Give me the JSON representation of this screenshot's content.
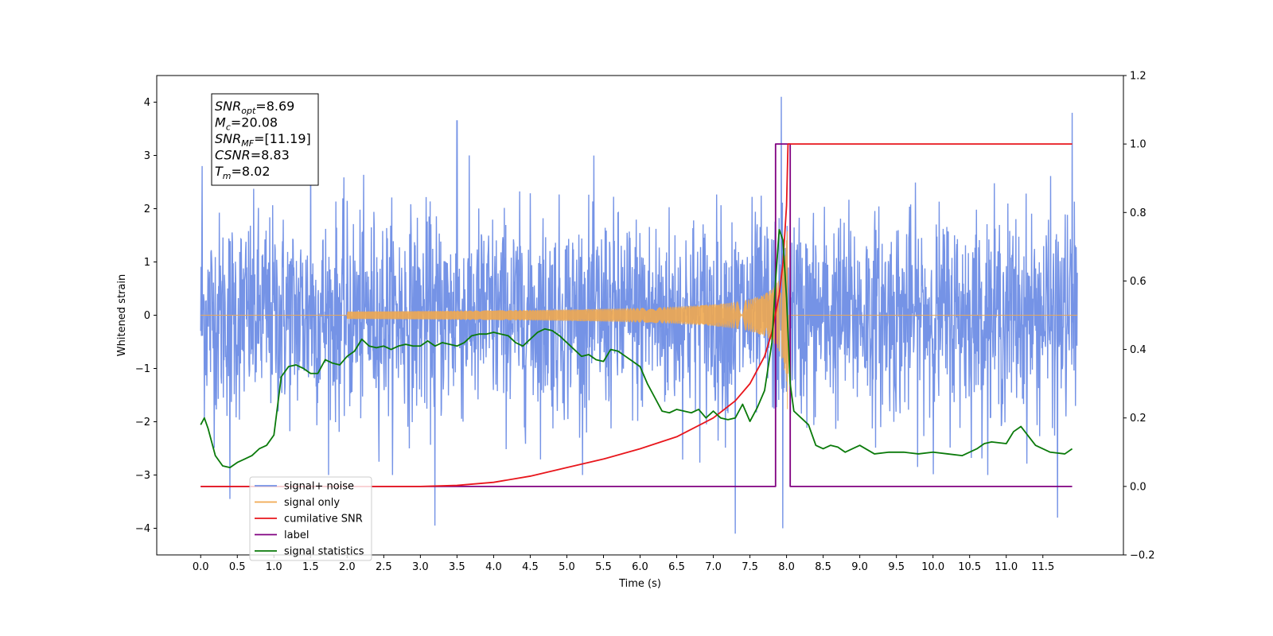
{
  "chart_data": {
    "type": "line",
    "title": "",
    "xlabel": "Time (s)",
    "ylabel": "Whitened strain",
    "xlim": [
      -0.6,
      12.6
    ],
    "ylim": [
      -4.5,
      4.5
    ],
    "y2lim": [
      -0.2,
      1.2
    ],
    "x_ticks": [
      "0.0",
      "0.5",
      "1.0",
      "1.5",
      "2.0",
      "2.5",
      "3.0",
      "3.5",
      "4.0",
      "4.5",
      "5.0",
      "5.5",
      "6.0",
      "6.5",
      "7.0",
      "7.5",
      "8.0",
      "8.5",
      "9.0",
      "9.5",
      "10.0",
      "10.5",
      "11.0",
      "11.5"
    ],
    "y_ticks": [
      "−4",
      "−3",
      "−2",
      "−1",
      "0",
      "1",
      "2",
      "3",
      "4"
    ],
    "y2_ticks": [
      "−0.2",
      "0.0",
      "0.2",
      "0.4",
      "0.6",
      "0.8",
      "1.0",
      "1.2"
    ],
    "grid": false,
    "legend_position": "lower-left",
    "legend": [
      "signal+ noise",
      "signal only",
      "cumilative SNR",
      "label",
      "signal statistics"
    ],
    "annotation": [
      {
        "base": "SNR",
        "sub": "opt",
        "value": "=8.69"
      },
      {
        "base": "M",
        "sub": "c",
        "value": "=20.08"
      },
      {
        "base": "SNR",
        "sub": "MF",
        "value": "=[11.19]"
      },
      {
        "base": "CSNR",
        "sub": "",
        "value": "=8.83"
      },
      {
        "base": "T",
        "sub": "m",
        "value": "=8.02"
      }
    ],
    "series": [
      {
        "name": "signal+ noise",
        "axis": "left",
        "color": "#7593e6",
        "noise_envelope": [
          1.6,
          2.2
        ],
        "notable_peaks": [
          [
            0.02,
            2.8
          ],
          [
            1.5,
            3.3
          ],
          [
            3.5,
            3.65
          ],
          [
            7.93,
            4.1
          ],
          [
            11.9,
            3.8
          ],
          [
            0.4,
            -3.45
          ],
          [
            3.2,
            -3.95
          ],
          [
            7.3,
            -4.1
          ],
          [
            7.95,
            -4.0
          ],
          [
            11.7,
            -3.8
          ]
        ]
      },
      {
        "name": "signal only",
        "axis": "left",
        "color": "#f0a950",
        "chirp_start": 2.0,
        "merger_time": 8.02,
        "peak_amplitude": 2.2
      },
      {
        "name": "cumilative SNR",
        "axis": "right",
        "color": "#e8161c",
        "x": [
          0.0,
          3.0,
          3.5,
          4.0,
          4.5,
          5.0,
          5.5,
          6.0,
          6.5,
          7.0,
          7.3,
          7.5,
          7.7,
          7.8,
          7.9,
          7.95,
          8.0,
          8.02,
          11.9
        ],
        "y": [
          0.0,
          0.0,
          0.003,
          0.012,
          0.03,
          0.055,
          0.08,
          0.11,
          0.145,
          0.2,
          0.25,
          0.3,
          0.38,
          0.45,
          0.56,
          0.65,
          0.82,
          1.0,
          1.0
        ]
      },
      {
        "name": "label",
        "axis": "right",
        "color": "#800080",
        "x": [
          0.0,
          7.85,
          7.85,
          8.05,
          8.05,
          11.9
        ],
        "y": [
          0.0,
          0.0,
          1.0,
          1.0,
          0.0,
          0.0
        ]
      },
      {
        "name": "signal statistics",
        "axis": "right",
        "color": "#0a7a0a",
        "x": [
          0.0,
          0.05,
          0.1,
          0.2,
          0.3,
          0.4,
          0.5,
          0.6,
          0.7,
          0.8,
          0.9,
          1.0,
          1.1,
          1.2,
          1.3,
          1.4,
          1.5,
          1.6,
          1.7,
          1.8,
          1.9,
          2.0,
          2.1,
          2.2,
          2.3,
          2.4,
          2.5,
          2.6,
          2.7,
          2.8,
          2.9,
          3.0,
          3.1,
          3.2,
          3.3,
          3.4,
          3.5,
          3.6,
          3.7,
          3.8,
          3.9,
          4.0,
          4.1,
          4.2,
          4.3,
          4.4,
          4.5,
          4.6,
          4.7,
          4.8,
          4.9,
          5.0,
          5.1,
          5.2,
          5.3,
          5.4,
          5.5,
          5.6,
          5.7,
          5.8,
          5.9,
          6.0,
          6.1,
          6.2,
          6.3,
          6.4,
          6.5,
          6.6,
          6.7,
          6.8,
          6.9,
          7.0,
          7.1,
          7.2,
          7.3,
          7.4,
          7.5,
          7.6,
          7.7,
          7.8,
          7.85,
          7.9,
          7.95,
          8.0,
          8.05,
          8.1,
          8.2,
          8.3,
          8.4,
          8.5,
          8.6,
          8.7,
          8.8,
          8.9,
          9.0,
          9.2,
          9.4,
          9.6,
          9.8,
          10.0,
          10.2,
          10.4,
          10.6,
          10.7,
          10.8,
          11.0,
          11.1,
          11.2,
          11.4,
          11.6,
          11.8,
          11.9
        ],
        "y": [
          0.18,
          0.2,
          0.17,
          0.09,
          0.06,
          0.055,
          0.07,
          0.08,
          0.09,
          0.11,
          0.12,
          0.15,
          0.32,
          0.35,
          0.355,
          0.345,
          0.33,
          0.33,
          0.37,
          0.36,
          0.355,
          0.38,
          0.395,
          0.43,
          0.41,
          0.405,
          0.41,
          0.4,
          0.41,
          0.415,
          0.41,
          0.41,
          0.425,
          0.41,
          0.42,
          0.415,
          0.41,
          0.42,
          0.44,
          0.445,
          0.445,
          0.45,
          0.445,
          0.44,
          0.42,
          0.41,
          0.43,
          0.45,
          0.46,
          0.455,
          0.44,
          0.42,
          0.4,
          0.38,
          0.385,
          0.37,
          0.365,
          0.4,
          0.395,
          0.38,
          0.365,
          0.35,
          0.3,
          0.26,
          0.22,
          0.215,
          0.225,
          0.22,
          0.215,
          0.225,
          0.2,
          0.22,
          0.2,
          0.195,
          0.2,
          0.24,
          0.19,
          0.23,
          0.28,
          0.42,
          0.6,
          0.75,
          0.72,
          0.55,
          0.3,
          0.22,
          0.2,
          0.18,
          0.12,
          0.11,
          0.12,
          0.115,
          0.1,
          0.11,
          0.12,
          0.095,
          0.1,
          0.1,
          0.095,
          0.1,
          0.095,
          0.09,
          0.11,
          0.125,
          0.13,
          0.125,
          0.16,
          0.175,
          0.12,
          0.1,
          0.095,
          0.11
        ]
      }
    ]
  }
}
